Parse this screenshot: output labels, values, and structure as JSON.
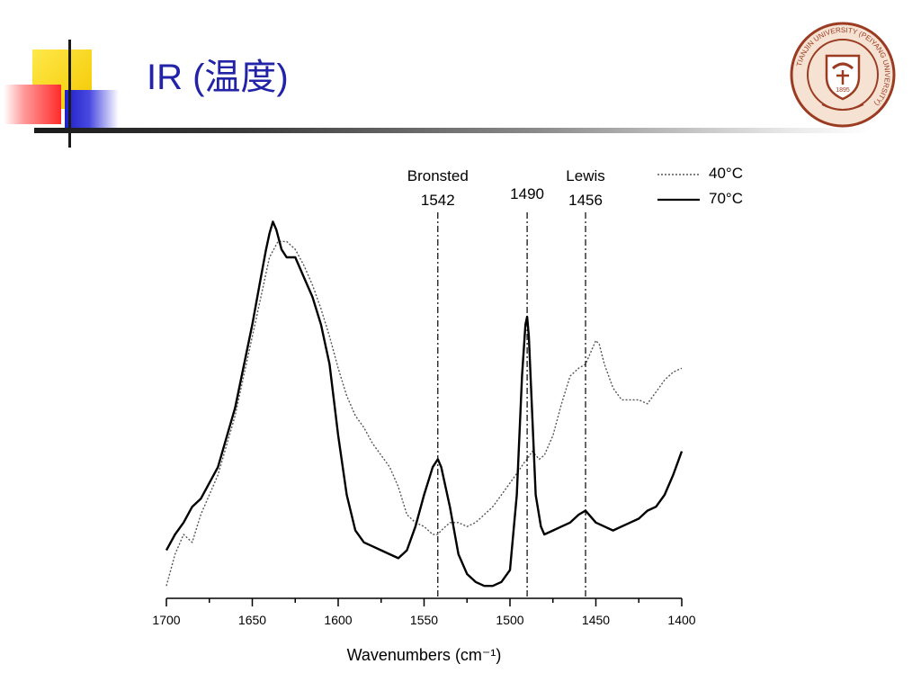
{
  "slide": {
    "title": "IR (温度)"
  },
  "logo": {
    "name": "university-seal",
    "text": "TIANJIN UNIVERSITY (PEIYANG UNIVERSITY)",
    "year": "1895",
    "colors": {
      "ring": "#9a3b22",
      "fill": "#f6e2d2"
    }
  },
  "chart_data": {
    "type": "line",
    "title": "",
    "xlabel": "Wavenumbers (cm⁻¹)",
    "ylabel": "",
    "xlim": [
      1700,
      1400
    ],
    "x_reversed": true,
    "y_axis_visible": false,
    "ylim": [
      0,
      100
    ],
    "xticks": [
      1700,
      1650,
      1600,
      1550,
      1500,
      1450,
      1400
    ],
    "legend_position": "top-right",
    "annotations": [
      {
        "x": 1542,
        "label_top": "Bronsted",
        "label": "1542"
      },
      {
        "x": 1490,
        "label_top": "",
        "label": "1490"
      },
      {
        "x": 1456,
        "label_top": "Lewis",
        "label": "1456"
      }
    ],
    "series": [
      {
        "name": "40°C",
        "style": "dotted",
        "color": "#555555",
        "points": [
          [
            1700,
            2
          ],
          [
            1695,
            10
          ],
          [
            1690,
            15
          ],
          [
            1685,
            13
          ],
          [
            1680,
            20
          ],
          [
            1670,
            30
          ],
          [
            1660,
            45
          ],
          [
            1655,
            55
          ],
          [
            1650,
            65
          ],
          [
            1645,
            75
          ],
          [
            1640,
            85
          ],
          [
            1635,
            89
          ],
          [
            1630,
            89
          ],
          [
            1625,
            87
          ],
          [
            1620,
            83
          ],
          [
            1615,
            78
          ],
          [
            1610,
            72
          ],
          [
            1605,
            65
          ],
          [
            1600,
            57
          ],
          [
            1595,
            50
          ],
          [
            1590,
            45
          ],
          [
            1585,
            42
          ],
          [
            1580,
            38
          ],
          [
            1575,
            35
          ],
          [
            1570,
            32
          ],
          [
            1565,
            27
          ],
          [
            1560,
            20
          ],
          [
            1555,
            18
          ],
          [
            1550,
            17
          ],
          [
            1545,
            15
          ],
          [
            1542,
            15
          ],
          [
            1540,
            16
          ],
          [
            1535,
            18
          ],
          [
            1530,
            18
          ],
          [
            1525,
            17
          ],
          [
            1520,
            18
          ],
          [
            1515,
            20
          ],
          [
            1510,
            22
          ],
          [
            1505,
            25
          ],
          [
            1500,
            28
          ],
          [
            1495,
            31
          ],
          [
            1492,
            33
          ],
          [
            1490,
            34
          ],
          [
            1487,
            36
          ],
          [
            1483,
            34
          ],
          [
            1480,
            35
          ],
          [
            1475,
            40
          ],
          [
            1470,
            48
          ],
          [
            1465,
            55
          ],
          [
            1460,
            57
          ],
          [
            1456,
            58
          ],
          [
            1450,
            64
          ],
          [
            1448,
            63
          ],
          [
            1445,
            58
          ],
          [
            1440,
            52
          ],
          [
            1435,
            49
          ],
          [
            1430,
            49
          ],
          [
            1425,
            49
          ],
          [
            1420,
            48
          ],
          [
            1415,
            51
          ],
          [
            1410,
            54
          ],
          [
            1405,
            56
          ],
          [
            1400,
            57
          ]
        ]
      },
      {
        "name": "70°C",
        "style": "solid",
        "color": "#000000",
        "points": [
          [
            1700,
            11
          ],
          [
            1695,
            15
          ],
          [
            1690,
            18
          ],
          [
            1685,
            22
          ],
          [
            1680,
            24
          ],
          [
            1670,
            32
          ],
          [
            1660,
            47
          ],
          [
            1650,
            68
          ],
          [
            1645,
            80
          ],
          [
            1642,
            87
          ],
          [
            1640,
            91
          ],
          [
            1638,
            94
          ],
          [
            1636,
            92
          ],
          [
            1633,
            87
          ],
          [
            1630,
            85
          ],
          [
            1625,
            85
          ],
          [
            1620,
            80
          ],
          [
            1615,
            75
          ],
          [
            1610,
            68
          ],
          [
            1605,
            58
          ],
          [
            1600,
            40
          ],
          [
            1595,
            25
          ],
          [
            1590,
            16
          ],
          [
            1585,
            13
          ],
          [
            1580,
            12
          ],
          [
            1575,
            11
          ],
          [
            1570,
            10
          ],
          [
            1565,
            9
          ],
          [
            1560,
            11
          ],
          [
            1555,
            17
          ],
          [
            1550,
            25
          ],
          [
            1545,
            32
          ],
          [
            1542,
            34
          ],
          [
            1540,
            32
          ],
          [
            1535,
            22
          ],
          [
            1530,
            10
          ],
          [
            1525,
            5
          ],
          [
            1520,
            3
          ],
          [
            1515,
            2
          ],
          [
            1510,
            2
          ],
          [
            1505,
            3
          ],
          [
            1500,
            6
          ],
          [
            1496,
            25
          ],
          [
            1493,
            55
          ],
          [
            1491,
            68
          ],
          [
            1490,
            70
          ],
          [
            1489,
            65
          ],
          [
            1487,
            45
          ],
          [
            1485,
            25
          ],
          [
            1482,
            17
          ],
          [
            1480,
            15
          ],
          [
            1475,
            16
          ],
          [
            1470,
            17
          ],
          [
            1465,
            18
          ],
          [
            1460,
            20
          ],
          [
            1456,
            21
          ],
          [
            1452,
            19
          ],
          [
            1450,
            18
          ],
          [
            1445,
            17
          ],
          [
            1440,
            16
          ],
          [
            1435,
            17
          ],
          [
            1430,
            18
          ],
          [
            1425,
            19
          ],
          [
            1420,
            21
          ],
          [
            1415,
            22
          ],
          [
            1410,
            25
          ],
          [
            1405,
            30
          ],
          [
            1400,
            36
          ]
        ]
      }
    ]
  }
}
